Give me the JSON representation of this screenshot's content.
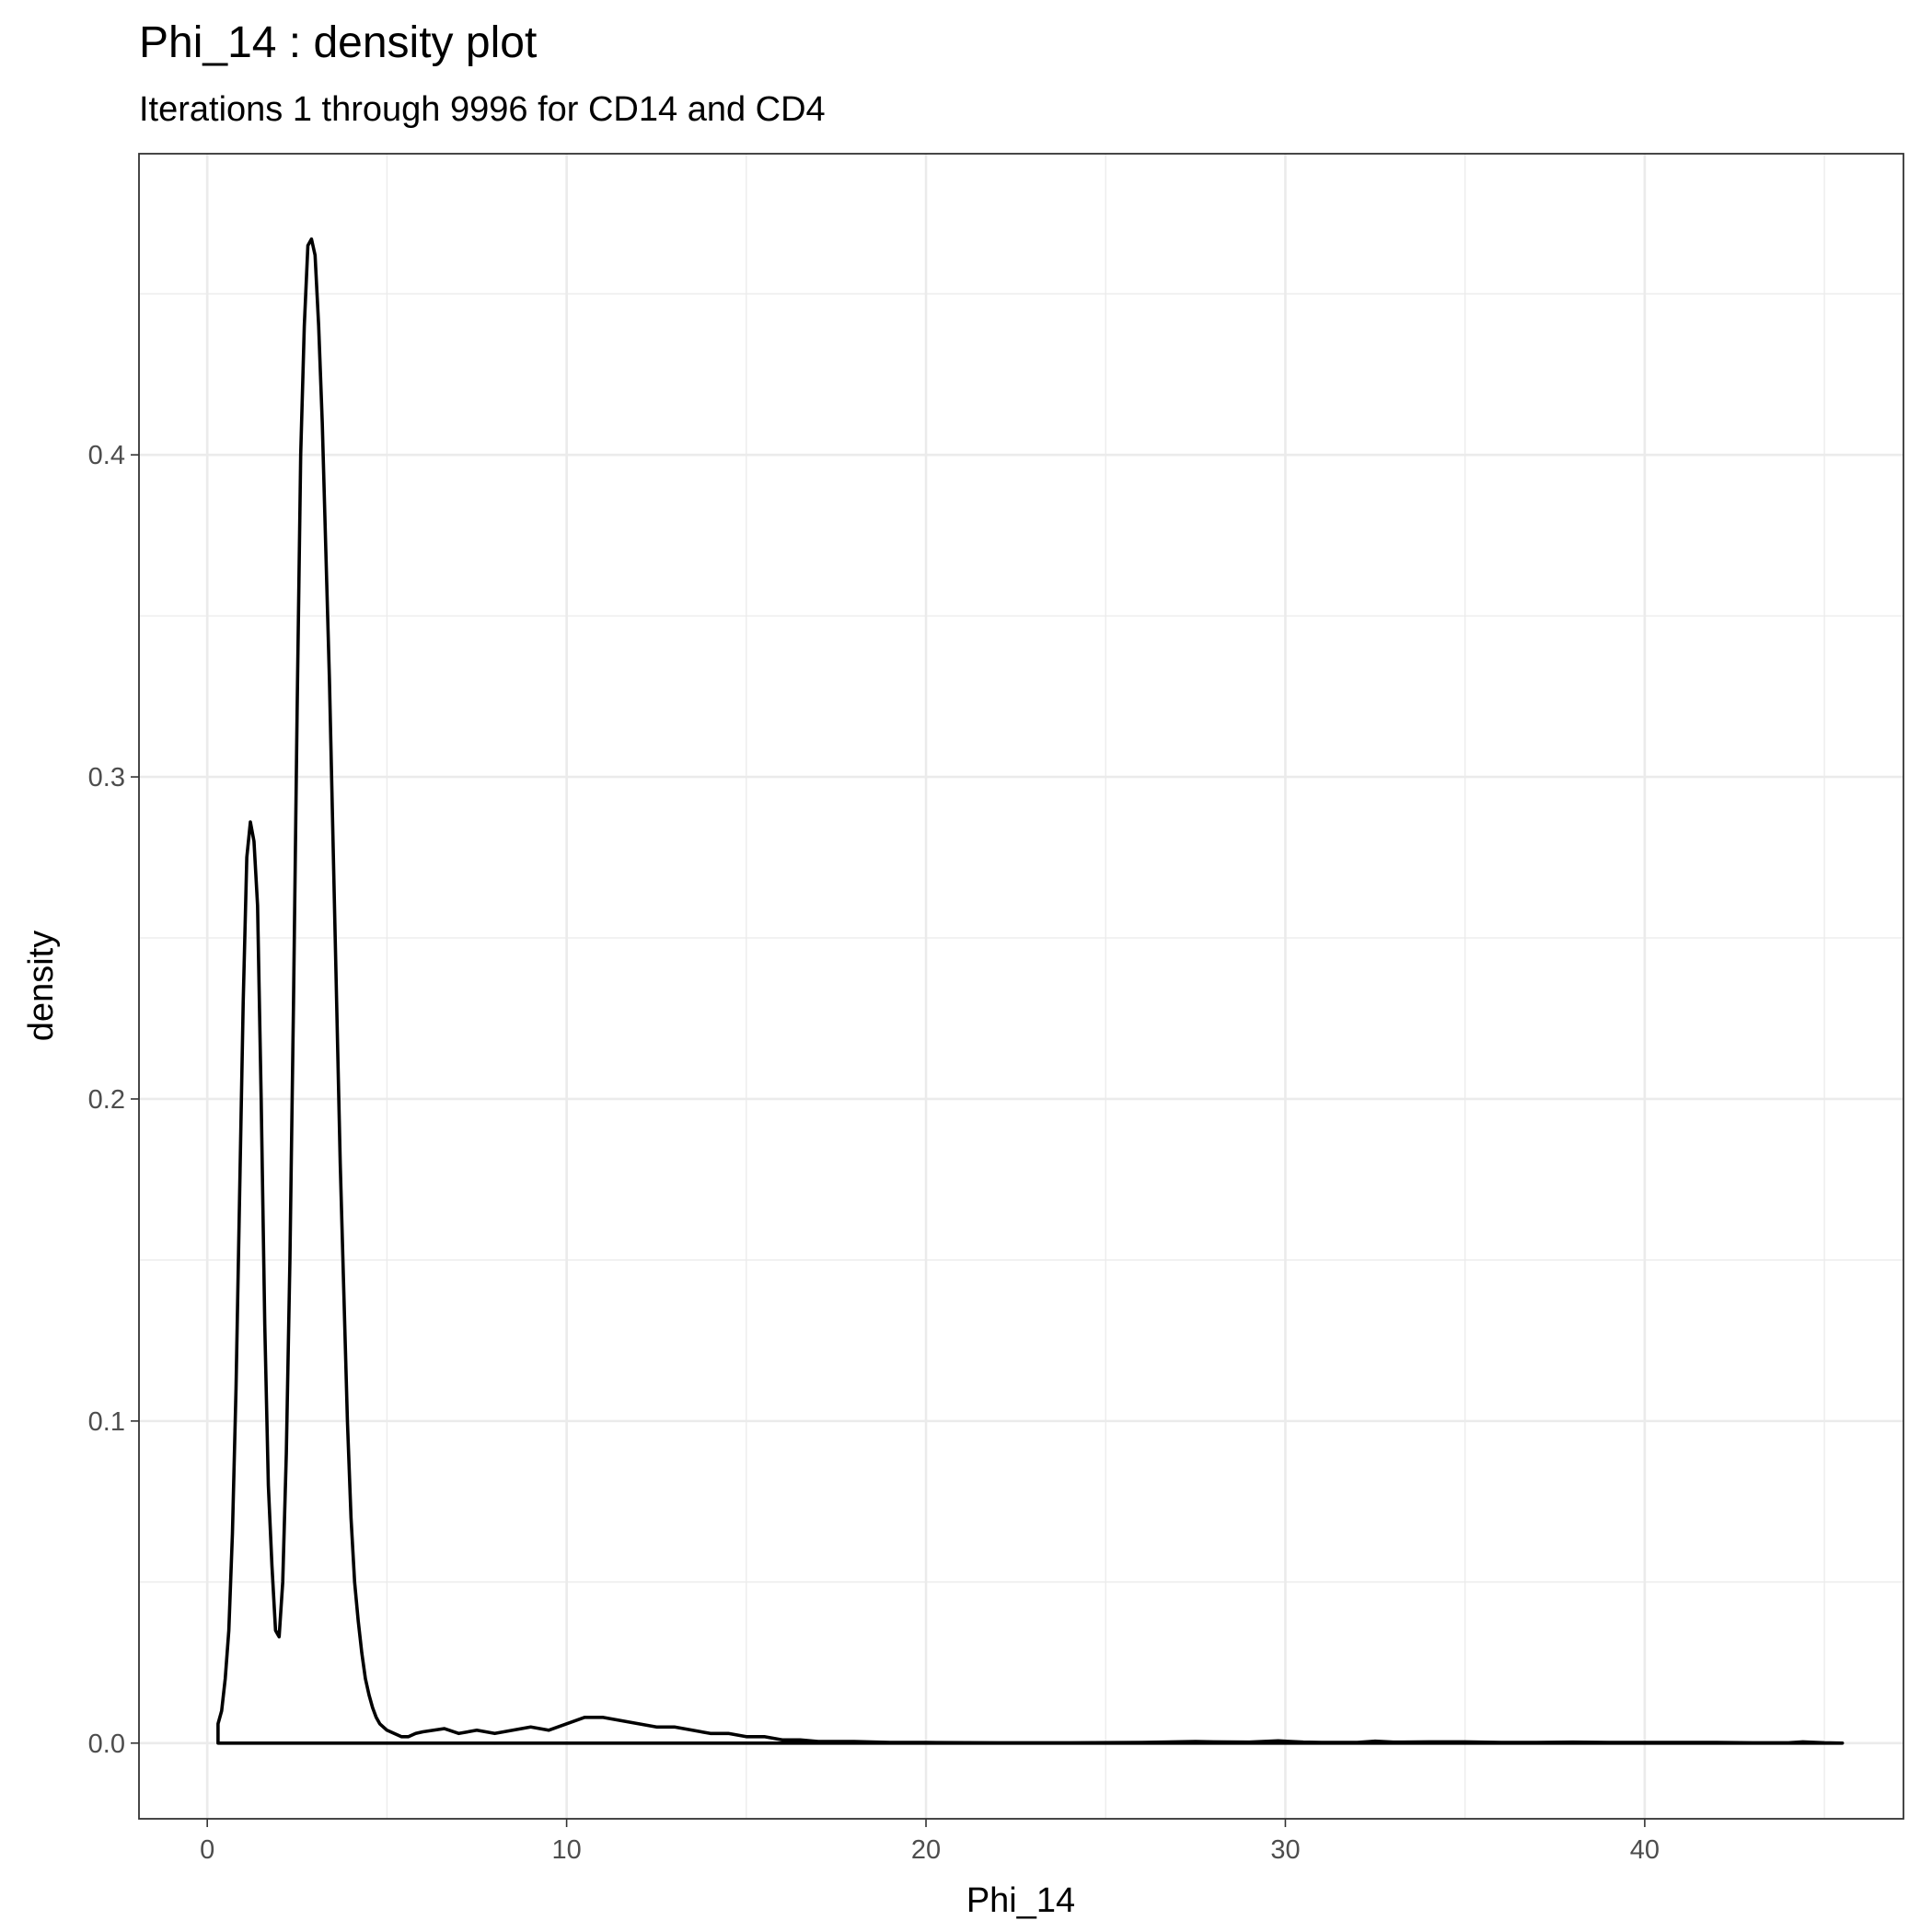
{
  "chart_data": {
    "type": "line",
    "title": "Phi_14 : density plot",
    "subtitle": "Iterations 1 through 9996 for CD14 and CD4",
    "xlabel": "Phi_14",
    "ylabel": "density",
    "xlim": [
      -1.9,
      47.2
    ],
    "ylim": [
      -0.0235,
      0.4935
    ],
    "x_ticks": [
      0,
      10,
      20,
      30,
      40
    ],
    "x_tick_labels": [
      "0",
      "10",
      "20",
      "30",
      "40"
    ],
    "y_ticks": [
      0.0,
      0.1,
      0.2,
      0.3,
      0.4
    ],
    "y_tick_labels": [
      "0.0",
      "0.1",
      "0.2",
      "0.3",
      "0.4"
    ],
    "grid": true,
    "colors": {
      "line": "#000000",
      "grid": "#ebebeb",
      "background": "#ffffff"
    },
    "series": [
      {
        "x": [
          0.3,
          0.3,
          0.4,
          0.5,
          0.6,
          0.7,
          0.8,
          0.9,
          1.0,
          1.1,
          1.2,
          1.3,
          1.4,
          1.5,
          1.6,
          1.7,
          1.8,
          1.9,
          2.0,
          2.1,
          2.2,
          2.3,
          2.4,
          2.5,
          2.6,
          2.7,
          2.8,
          2.9,
          3.0,
          3.1,
          3.2,
          3.3,
          3.4,
          3.5,
          3.6,
          3.7,
          3.8,
          3.9,
          4.0,
          4.1,
          4.2,
          4.3,
          4.4,
          4.5,
          4.6,
          4.7,
          4.8,
          4.9,
          5.0,
          5.2,
          5.4,
          5.6,
          5.8,
          6.0,
          6.3,
          6.6,
          7.0,
          7.5,
          8.0,
          8.5,
          9.0,
          9.5,
          10.0,
          10.5,
          11.0,
          11.5,
          12.0,
          12.5,
          13.0,
          13.5,
          14.0,
          14.5,
          15.0,
          15.5,
          16.0,
          16.5,
          17.0,
          17.5,
          18.0,
          19.0,
          20.0,
          22.0,
          24.0,
          26.0,
          27.5,
          28.0,
          29.0,
          29.8,
          30.5,
          31.0,
          32.0,
          32.5,
          33.0,
          34.0,
          35.0,
          36.0,
          37.0,
          38.0,
          39.0,
          40.0,
          41.0,
          42.0,
          43.0,
          44.0,
          44.4,
          45.0,
          45.5
        ],
        "y": [
          0.0,
          0.006,
          0.01,
          0.02,
          0.035,
          0.065,
          0.11,
          0.17,
          0.23,
          0.275,
          0.286,
          0.28,
          0.26,
          0.2,
          0.13,
          0.08,
          0.055,
          0.035,
          0.033,
          0.05,
          0.09,
          0.15,
          0.23,
          0.32,
          0.4,
          0.44,
          0.465,
          0.467,
          0.462,
          0.44,
          0.41,
          0.37,
          0.33,
          0.28,
          0.23,
          0.18,
          0.14,
          0.1,
          0.07,
          0.05,
          0.038,
          0.028,
          0.02,
          0.015,
          0.011,
          0.008,
          0.006,
          0.005,
          0.004,
          0.003,
          0.002,
          0.002,
          0.003,
          0.0035,
          0.004,
          0.0045,
          0.003,
          0.004,
          0.003,
          0.004,
          0.005,
          0.004,
          0.006,
          0.008,
          0.008,
          0.007,
          0.006,
          0.005,
          0.005,
          0.004,
          0.003,
          0.003,
          0.002,
          0.002,
          0.001,
          0.001,
          0.0005,
          0.0005,
          0.0005,
          0.0002,
          0.0002,
          0.0001,
          0.0001,
          0.0002,
          0.0005,
          0.0004,
          0.0003,
          0.0007,
          0.0003,
          0.0002,
          0.0002,
          0.0006,
          0.0003,
          0.0004,
          0.0004,
          0.0002,
          0.0002,
          0.0003,
          0.0002,
          0.0002,
          0.0002,
          0.0002,
          0.0001,
          0.0001,
          0.0004,
          0.0001,
          0.0
        ]
      }
    ]
  }
}
